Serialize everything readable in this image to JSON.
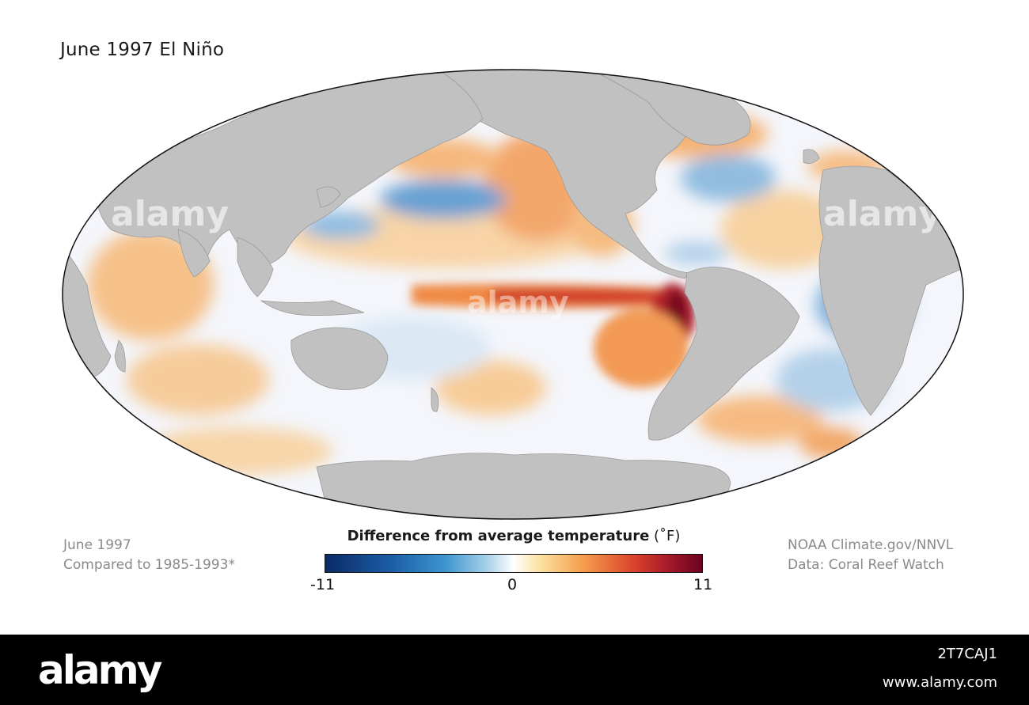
{
  "title": "June 1997 El Niño",
  "left_caption": {
    "line1": "June 1997",
    "line2": "Compared to 1985-1993*"
  },
  "right_caption": {
    "line1": "NOAA Climate.gov/NNVL",
    "line2": "Data: Coral Reef Watch"
  },
  "legend": {
    "title": "Difference from average temperature",
    "unit": "(˚F)",
    "min_label": "-11",
    "mid_label": "0",
    "max_label": "11",
    "colors": [
      "#0a2a66",
      "#3e96d1",
      "#ffffff",
      "#f6a04e",
      "#d9422b",
      "#6a0520"
    ]
  },
  "watermark": "alamy",
  "footer": {
    "logo": "alamy",
    "image_id": "2T7CAJ1",
    "url": "www.alamy.com"
  },
  "colors": {
    "land": "#c1c1c1",
    "ocean_base": "#f4f6fb",
    "warm": "#f7b267",
    "hot": "#d9422b",
    "cool": "#4a90cc"
  }
}
